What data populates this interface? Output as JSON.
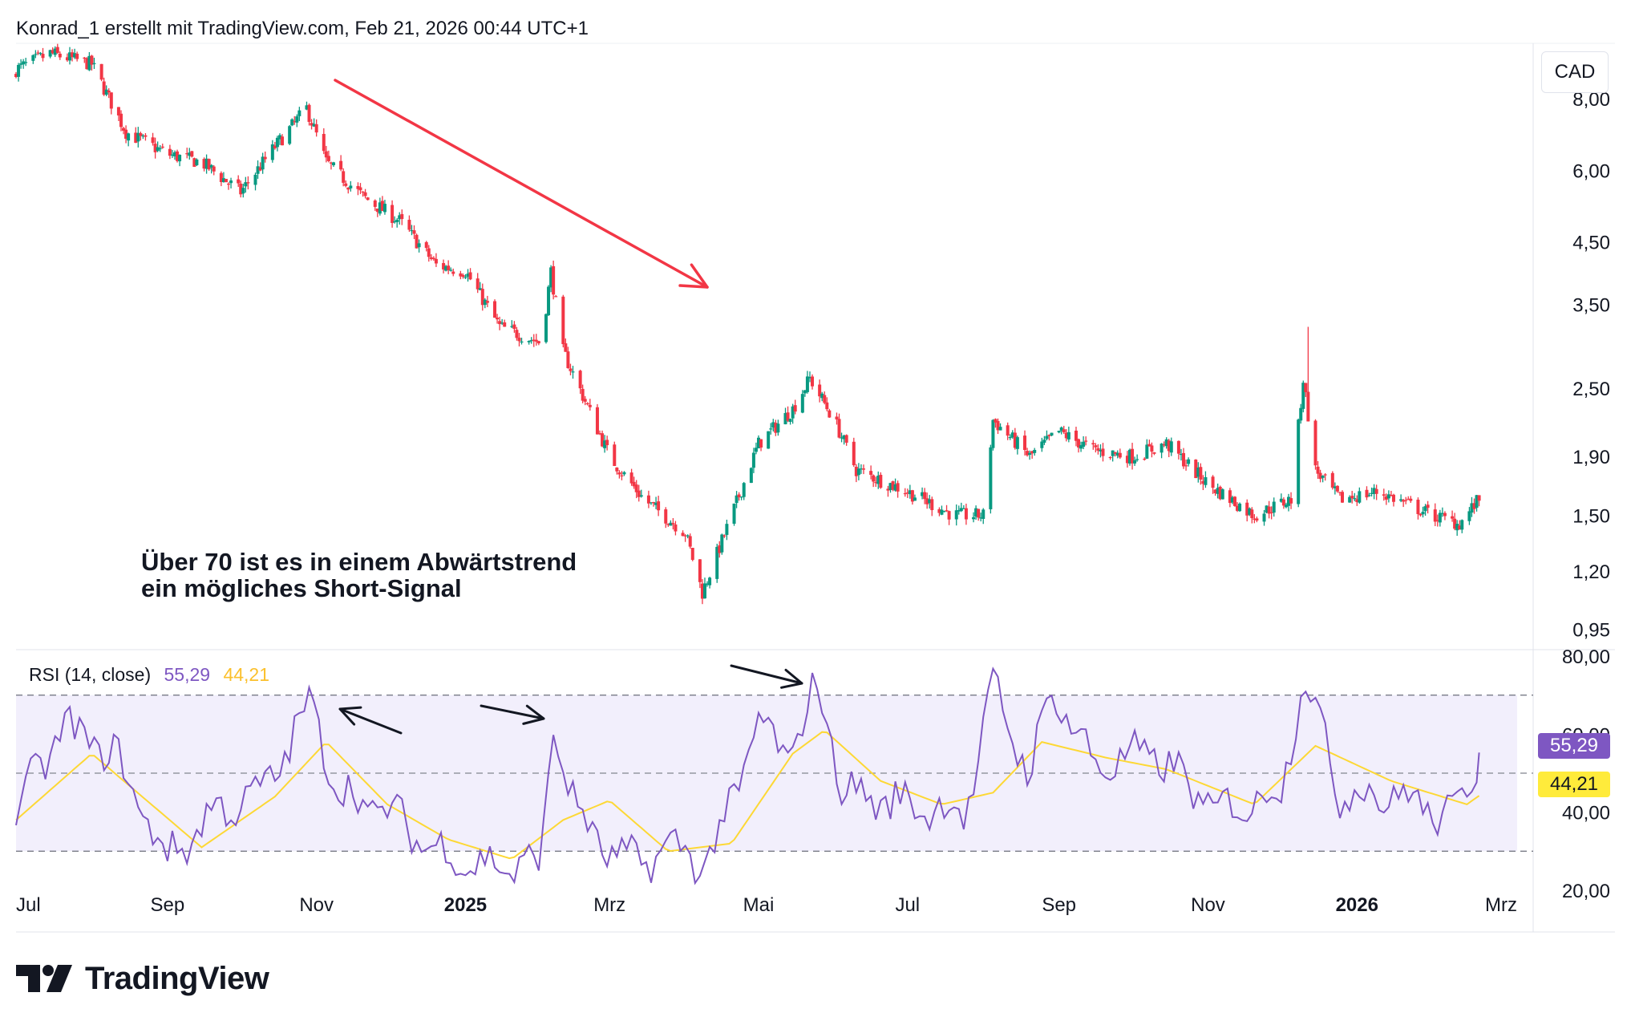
{
  "header": {
    "text": "Konrad_1 erstellt mit TradingView.com, Feb 21, 2026 00:44 UTC+1"
  },
  "price_axis": {
    "currency": "CAD"
  },
  "annotation": {
    "line1": "Über 70 ist es in einem Abwärtstrend",
    "line2": "ein mögliches Short-Signal"
  },
  "rsi": {
    "title": "RSI (14, close)",
    "value": "55,29",
    "ma_value": "44,21"
  },
  "logo": {
    "text": "TradingView"
  },
  "colors": {
    "up": "#089981",
    "down": "#f23645",
    "rsi": "#7e57c2",
    "rsi_ma": "#fdd835",
    "band": "#f2effc",
    "arrow_red": "#f23645",
    "arrow_black": "#131722"
  },
  "chart_data": [
    {
      "type": "candlestick",
      "title": "",
      "scale": "log",
      "y_ticks": [
        "8,00",
        "6,00",
        "4,50",
        "3,50",
        "2,50",
        "1,90",
        "1,50",
        "1,20",
        "0,95"
      ],
      "x_ticks": [
        "Jul",
        "Sep",
        "Nov",
        "2025",
        "Mrz",
        "Mai",
        "Jul",
        "Sep",
        "Nov",
        "2026",
        "Mrz"
      ],
      "x_ticks_bold": [
        "2025",
        "2026"
      ],
      "x_range": [
        "2024-07",
        "2026-03"
      ],
      "ylim": [
        0.88,
        10.0
      ],
      "close_path": [
        [
          "2024-07-01",
          9.0
        ],
        [
          "2024-07-15",
          9.6
        ],
        [
          "2024-08-01",
          9.2
        ],
        [
          "2024-08-15",
          7.0
        ],
        [
          "2024-09-01",
          6.4
        ],
        [
          "2024-09-15",
          6.2
        ],
        [
          "2024-10-01",
          5.5
        ],
        [
          "2024-10-15",
          6.6
        ],
        [
          "2024-10-28",
          7.7
        ],
        [
          "2024-11-05",
          6.2
        ],
        [
          "2024-11-20",
          5.4
        ],
        [
          "2024-12-05",
          4.9
        ],
        [
          "2024-12-20",
          4.1
        ],
        [
          "2025-01-01",
          4.0
        ],
        [
          "2025-01-15",
          3.2
        ],
        [
          "2025-02-01",
          3.0
        ],
        [
          "2025-02-05",
          4.0
        ],
        [
          "2025-02-10",
          2.9
        ],
        [
          "2025-03-01",
          1.9
        ],
        [
          "2025-03-15",
          1.6
        ],
        [
          "2025-04-01",
          1.4
        ],
        [
          "2025-04-08",
          1.1
        ],
        [
          "2025-04-20",
          1.5
        ],
        [
          "2025-05-01",
          2.0
        ],
        [
          "2025-05-15",
          2.3
        ],
        [
          "2025-05-22",
          2.6
        ],
        [
          "2025-06-01",
          2.2
        ],
        [
          "2025-06-10",
          1.8
        ],
        [
          "2025-07-01",
          1.65
        ],
        [
          "2025-07-20",
          1.5
        ],
        [
          "2025-08-01",
          1.5
        ],
        [
          "2025-08-05",
          2.2
        ],
        [
          "2025-08-20",
          1.9
        ],
        [
          "2025-09-01",
          2.1
        ],
        [
          "2025-09-15",
          1.95
        ],
        [
          "2025-10-01",
          1.9
        ],
        [
          "2025-10-15",
          2.0
        ],
        [
          "2025-11-01",
          1.7
        ],
        [
          "2025-11-20",
          1.5
        ],
        [
          "2025-12-05",
          1.6
        ],
        [
          "2025-12-10",
          2.6
        ],
        [
          "2025-12-15",
          1.8
        ],
        [
          "2025-12-25",
          1.6
        ],
        [
          "2026-01-10",
          1.65
        ],
        [
          "2026-02-01",
          1.5
        ],
        [
          "2026-02-12",
          1.45
        ],
        [
          "2026-02-20",
          1.6
        ]
      ],
      "high_marks": [
        [
          "2025-02-05",
          4.1
        ],
        [
          "2025-12-12",
          3.2
        ]
      ],
      "low_marks": [
        [
          "2025-04-08",
          1.05
        ]
      ]
    },
    {
      "type": "line",
      "title": "RSI (14, close)",
      "y_ticks": [
        "80,00",
        "60,00",
        "40,00",
        "20,00"
      ],
      "ylim": [
        20,
        80
      ],
      "bands": {
        "upper": 70,
        "middle": 50,
        "lower": 30
      },
      "series": [
        {
          "name": "RSI",
          "last": 55.29,
          "path": [
            [
              "2024-07-01",
              40
            ],
            [
              "2024-07-20",
              62
            ],
            [
              "2024-08-10",
              55
            ],
            [
              "2024-09-01",
              28
            ],
            [
              "2024-09-20",
              40
            ],
            [
              "2024-10-10",
              45
            ],
            [
              "2024-10-30",
              68
            ],
            [
              "2024-11-10",
              45
            ],
            [
              "2024-12-01",
              40
            ],
            [
              "2024-12-20",
              30
            ],
            [
              "2025-01-10",
              26
            ],
            [
              "2025-02-01",
              27
            ],
            [
              "2025-02-06",
              63
            ],
            [
              "2025-02-15",
              40
            ],
            [
              "2025-03-05",
              27
            ],
            [
              "2025-04-01",
              31
            ],
            [
              "2025-04-10",
              26
            ],
            [
              "2025-05-01",
              62
            ],
            [
              "2025-05-15",
              55
            ],
            [
              "2025-05-25",
              73
            ],
            [
              "2025-06-05",
              45
            ],
            [
              "2025-07-01",
              42
            ],
            [
              "2025-07-25",
              40
            ],
            [
              "2025-08-05",
              72
            ],
            [
              "2025-08-20",
              50
            ],
            [
              "2025-08-30",
              72
            ],
            [
              "2025-09-15",
              52
            ],
            [
              "2025-10-10",
              55
            ],
            [
              "2025-11-05",
              40
            ],
            [
              "2025-12-01",
              45
            ],
            [
              "2025-12-10",
              76
            ],
            [
              "2025-12-25",
              45
            ],
            [
              "2026-01-20",
              44
            ],
            [
              "2026-02-10",
              38
            ],
            [
              "2026-02-20",
              55.29
            ]
          ]
        },
        {
          "name": "RSI MA",
          "last": 44.21,
          "path": [
            [
              "2024-07-01",
              38
            ],
            [
              "2024-08-01",
              55
            ],
            [
              "2024-09-15",
              31
            ],
            [
              "2024-10-15",
              44
            ],
            [
              "2024-11-05",
              58
            ],
            [
              "2024-11-30",
              42
            ],
            [
              "2024-12-25",
              33
            ],
            [
              "2025-01-20",
              28
            ],
            [
              "2025-02-10",
              38
            ],
            [
              "2025-03-01",
              43
            ],
            [
              "2025-03-25",
              30
            ],
            [
              "2025-04-20",
              32
            ],
            [
              "2025-05-15",
              55
            ],
            [
              "2025-05-28",
              61
            ],
            [
              "2025-06-20",
              48
            ],
            [
              "2025-07-15",
              42
            ],
            [
              "2025-08-05",
              45
            ],
            [
              "2025-08-25",
              58
            ],
            [
              "2025-09-20",
              54
            ],
            [
              "2025-10-15",
              51
            ],
            [
              "2025-11-20",
              42
            ],
            [
              "2025-12-15",
              57
            ],
            [
              "2026-01-15",
              48
            ],
            [
              "2026-02-15",
              42
            ],
            [
              "2026-02-20",
              44.21
            ]
          ]
        }
      ]
    }
  ]
}
